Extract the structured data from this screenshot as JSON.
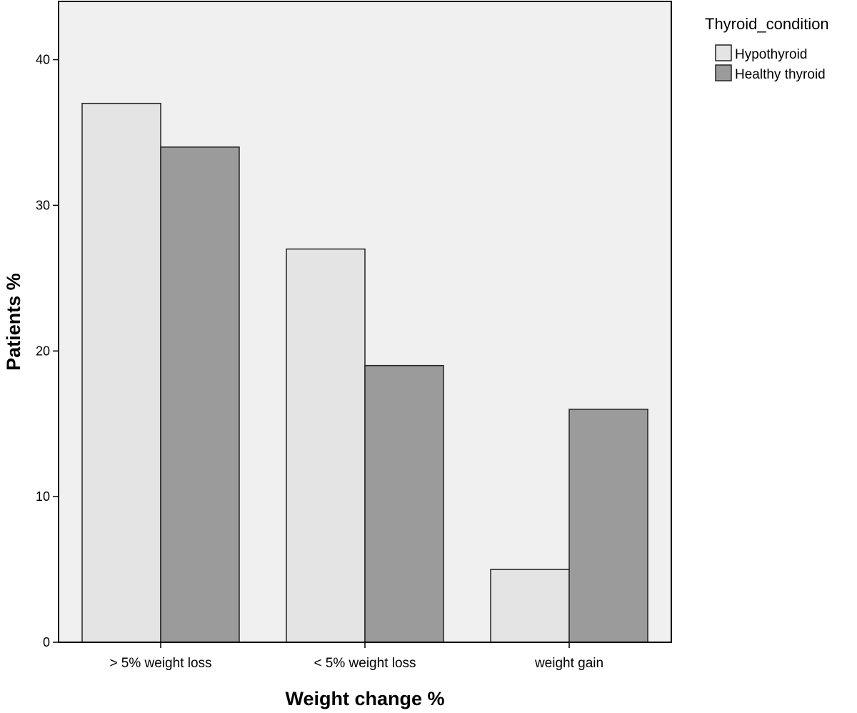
{
  "chart_data": {
    "type": "bar",
    "title": "",
    "xlabel": "Weight change %",
    "ylabel": "Patients %",
    "categories": [
      "> 5% weight loss",
      "< 5% weight loss",
      "weight gain"
    ],
    "series": [
      {
        "name": "Hypothyroid",
        "values": [
          37,
          27,
          5
        ],
        "color": "#e4e4e4"
      },
      {
        "name": "Healthy thyroid",
        "values": [
          34,
          19,
          16
        ],
        "color": "#9b9b9b"
      }
    ],
    "ylim": [
      0,
      44
    ],
    "yticks": [
      0,
      10,
      20,
      30,
      40
    ],
    "grid": false,
    "legend": {
      "title": "Thyroid_condition",
      "placement": "top-right-outside"
    },
    "plot_background": "#f0f0f0"
  }
}
